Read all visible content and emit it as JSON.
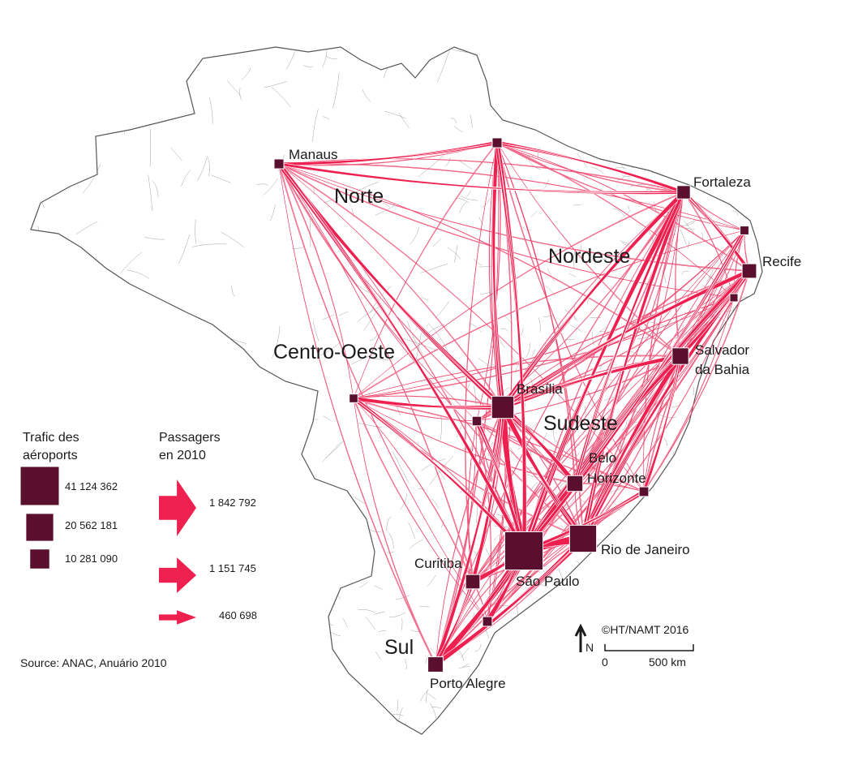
{
  "colors": {
    "airport": "#5a0f2e",
    "route": "#ee2050",
    "route_light": "#f6a0b4",
    "border": "#7a7a7a",
    "land": "#ffffff"
  },
  "regions": [
    {
      "id": "norte",
      "label": "Norte"
    },
    {
      "id": "nordeste",
      "label": "Nordeste"
    },
    {
      "id": "centro-oeste",
      "label": "Centro-Oeste"
    },
    {
      "id": "sudeste",
      "label": "Sudeste"
    },
    {
      "id": "sul",
      "label": "Sul"
    }
  ],
  "airports": [
    {
      "id": "sao-paulo",
      "label": "São Paulo",
      "passengers": 41124362
    },
    {
      "id": "rio",
      "label": "Rio de Janeiro",
      "passengers": 20562181
    },
    {
      "id": "brasilia",
      "label": "Brasília",
      "passengers": 14000000
    },
    {
      "id": "belo-horizonte",
      "label_lines": [
        "Belo",
        "Horizonte"
      ],
      "passengers": 7000000
    },
    {
      "id": "salvador",
      "label_lines": [
        "Salvador",
        "da Bahia"
      ],
      "passengers": 7700000
    },
    {
      "id": "recife",
      "label": "Recife",
      "passengers": 5900000
    },
    {
      "id": "fortaleza",
      "label": "Fortaleza",
      "passengers": 5000000
    },
    {
      "id": "porto-alegre",
      "label": "Porto Alegre",
      "passengers": 6600000
    },
    {
      "id": "curitiba",
      "label": "Curitiba",
      "passengers": 5800000
    },
    {
      "id": "manaus",
      "label": "Manaus",
      "passengers": 2700000
    },
    {
      "id": "belem",
      "label": "",
      "passengers": 2700000
    },
    {
      "id": "cuiaba",
      "label": "",
      "passengers": 2100000
    },
    {
      "id": "goiania",
      "label": "",
      "passengers": 2500000
    },
    {
      "id": "vitoria",
      "label": "",
      "passengers": 2600000
    },
    {
      "id": "florianopolis",
      "label": "",
      "passengers": 2600000
    },
    {
      "id": "natal",
      "label": "",
      "passengers": 2200000
    },
    {
      "id": "maceio",
      "label": "",
      "passengers": 1400000
    }
  ],
  "routes_top": [
    {
      "from": "sao-paulo",
      "to": "rio",
      "pax": 1842792
    },
    {
      "from": "sao-paulo",
      "to": "brasilia",
      "pax": 1400000
    },
    {
      "from": "sao-paulo",
      "to": "porto-alegre",
      "pax": 1300000
    },
    {
      "from": "sao-paulo",
      "to": "salvador",
      "pax": 1151745
    },
    {
      "from": "sao-paulo",
      "to": "recife",
      "pax": 1100000
    },
    {
      "from": "sao-paulo",
      "to": "belo-horizonte",
      "pax": 1000000
    },
    {
      "from": "sao-paulo",
      "to": "curitiba",
      "pax": 950000
    },
    {
      "from": "sao-paulo",
      "to": "fortaleza",
      "pax": 900000
    },
    {
      "from": "sao-paulo",
      "to": "florianopolis",
      "pax": 900000
    },
    {
      "from": "rio",
      "to": "brasilia",
      "pax": 950000
    },
    {
      "from": "rio",
      "to": "porto-alegre",
      "pax": 800000
    },
    {
      "from": "rio",
      "to": "salvador",
      "pax": 850000
    },
    {
      "from": "rio",
      "to": "recife",
      "pax": 750000
    },
    {
      "from": "rio",
      "to": "fortaleza",
      "pax": 650000
    },
    {
      "from": "brasilia",
      "to": "manaus",
      "pax": 750000
    },
    {
      "from": "brasilia",
      "to": "belem",
      "pax": 650000
    },
    {
      "from": "brasilia",
      "to": "salvador",
      "pax": 700000
    },
    {
      "from": "brasilia",
      "to": "fortaleza",
      "pax": 700000
    },
    {
      "from": "brasilia",
      "to": "recife",
      "pax": 650000
    },
    {
      "from": "brasilia",
      "to": "belo-horizonte",
      "pax": 850000
    },
    {
      "from": "brasilia",
      "to": "cuiaba",
      "pax": 600000
    },
    {
      "from": "brasilia",
      "to": "porto-alegre",
      "pax": 650000
    },
    {
      "from": "brasilia",
      "to": "curitiba",
      "pax": 600000
    },
    {
      "from": "belo-horizonte",
      "to": "salvador",
      "pax": 600000
    },
    {
      "from": "belo-horizonte",
      "to": "recife",
      "pax": 500000
    },
    {
      "from": "belo-horizonte",
      "to": "fortaleza",
      "pax": 450000
    },
    {
      "from": "belem",
      "to": "manaus",
      "pax": 450000
    },
    {
      "from": "belem",
      "to": "fortaleza",
      "pax": 450000
    },
    {
      "from": "fortaleza",
      "to": "recife",
      "pax": 500000
    },
    {
      "from": "fortaleza",
      "to": "manaus",
      "pax": 350000
    },
    {
      "from": "recife",
      "to": "salvador",
      "pax": 550000
    },
    {
      "from": "salvador",
      "to": "vitoria",
      "pax": 400000
    },
    {
      "from": "curitiba",
      "to": "porto-alegre",
      "pax": 450000
    },
    {
      "from": "cuiaba",
      "to": "sao-paulo",
      "pax": 500000
    },
    {
      "from": "goiania",
      "to": "sao-paulo",
      "pax": 600000
    },
    {
      "from": "vitoria",
      "to": "sao-paulo",
      "pax": 550000
    },
    {
      "from": "natal",
      "to": "sao-paulo",
      "pax": 450000
    },
    {
      "from": "manaus",
      "to": "sao-paulo",
      "pax": 600000
    },
    {
      "from": "belem",
      "to": "sao-paulo",
      "pax": 650000
    }
  ],
  "legend": {
    "airports_title_lines": [
      "Trafic des",
      "aéroports"
    ],
    "airport_values": [
      {
        "value": 41124362,
        "label": "41 124 362"
      },
      {
        "value": 20562181,
        "label": "20 562 181"
      },
      {
        "value": 10281090,
        "label": "10 281 090"
      }
    ],
    "routes_title_lines": [
      "Passagers",
      "en 2010"
    ],
    "route_values": [
      {
        "value": 1842792,
        "label": "1 842 792"
      },
      {
        "value": 1151745,
        "label": "1 151 745"
      },
      {
        "value": 460698,
        "label": "460 698"
      }
    ]
  },
  "source": "Source: ANAC, Anuário 2010",
  "credit": "©HT/NAMT 2016",
  "north_label": "N",
  "scale": {
    "zero": "0",
    "distance": "500 km"
  }
}
